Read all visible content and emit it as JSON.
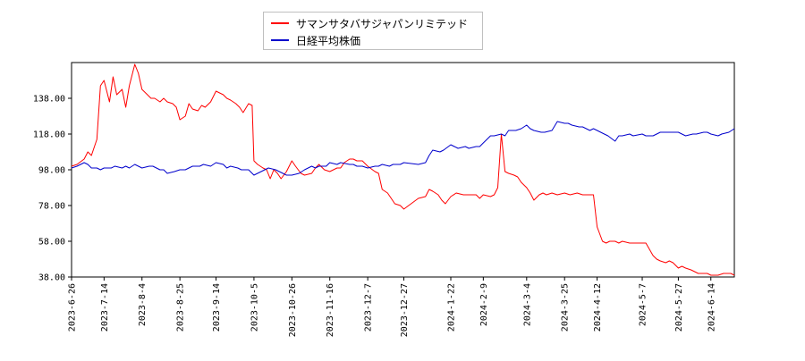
{
  "chart_data": {
    "type": "line",
    "title": "",
    "xlabel": "",
    "ylabel": "",
    "ylim": [
      38,
      158
    ],
    "yticks": [
      "38.00",
      "58.00",
      "78.00",
      "98.00",
      "118.00",
      "138.00"
    ],
    "xtick_labels": [
      "2023-6-26",
      "2023-7-14",
      "2023-8-4",
      "2023-8-25",
      "2023-9-14",
      "2023-10-5",
      "2023-10-26",
      "2023-11-16",
      "2023-12-7",
      "2023-12-27",
      "2024-1-22",
      "2024-2-9",
      "2024-3-4",
      "2024-3-25",
      "2024-4-12",
      "2024-5-7",
      "2024-5-27",
      "2024-6-14"
    ],
    "xtick_dates": [
      "2023-06-26",
      "2023-07-14",
      "2023-08-04",
      "2023-08-25",
      "2023-09-14",
      "2023-10-05",
      "2023-10-26",
      "2023-11-16",
      "2023-12-07",
      "2023-12-27",
      "2024-01-22",
      "2024-02-09",
      "2024-03-04",
      "2024-03-25",
      "2024-04-12",
      "2024-05-07",
      "2024-05-27",
      "2024-06-14"
    ],
    "x_range": [
      "2023-06-26",
      "2024-06-27"
    ],
    "grid": false,
    "legend_position": "top-center",
    "series": [
      {
        "name": "サマンサタバサジャパンリミテッド",
        "color": "#ff0000",
        "points": [
          [
            "2023-06-26",
            100
          ],
          [
            "2023-06-29",
            101
          ],
          [
            "2023-07-03",
            104
          ],
          [
            "2023-07-05",
            108
          ],
          [
            "2023-07-07",
            106
          ],
          [
            "2023-07-10",
            115
          ],
          [
            "2023-07-12",
            145
          ],
          [
            "2023-07-14",
            148
          ],
          [
            "2023-07-17",
            136
          ],
          [
            "2023-07-19",
            150
          ],
          [
            "2023-07-21",
            140
          ],
          [
            "2023-07-24",
            143
          ],
          [
            "2023-07-26",
            133
          ],
          [
            "2023-07-28",
            145
          ],
          [
            "2023-07-31",
            157
          ],
          [
            "2023-08-02",
            152
          ],
          [
            "2023-08-04",
            143
          ],
          [
            "2023-08-07",
            140
          ],
          [
            "2023-08-09",
            138
          ],
          [
            "2023-08-11",
            138
          ],
          [
            "2023-08-14",
            136
          ],
          [
            "2023-08-16",
            138
          ],
          [
            "2023-08-18",
            136
          ],
          [
            "2023-08-21",
            135
          ],
          [
            "2023-08-23",
            133
          ],
          [
            "2023-08-25",
            126
          ],
          [
            "2023-08-28",
            128
          ],
          [
            "2023-08-30",
            135
          ],
          [
            "2023-09-01",
            132
          ],
          [
            "2023-09-04",
            131
          ],
          [
            "2023-09-06",
            134
          ],
          [
            "2023-09-08",
            133
          ],
          [
            "2023-09-11",
            136
          ],
          [
            "2023-09-13",
            140
          ],
          [
            "2023-09-14",
            142
          ],
          [
            "2023-09-18",
            140
          ],
          [
            "2023-09-20",
            138
          ],
          [
            "2023-09-22",
            137
          ],
          [
            "2023-09-25",
            135
          ],
          [
            "2023-09-27",
            133
          ],
          [
            "2023-09-29",
            130
          ],
          [
            "2023-10-02",
            135
          ],
          [
            "2023-10-04",
            134
          ],
          [
            "2023-10-05",
            103
          ],
          [
            "2023-10-07",
            101
          ],
          [
            "2023-10-10",
            99
          ],
          [
            "2023-10-12",
            98
          ],
          [
            "2023-10-14",
            93
          ],
          [
            "2023-10-16",
            98
          ],
          [
            "2023-10-18",
            96
          ],
          [
            "2023-10-20",
            93
          ],
          [
            "2023-10-23",
            97
          ],
          [
            "2023-10-26",
            103
          ],
          [
            "2023-10-28",
            100
          ],
          [
            "2023-10-31",
            96
          ],
          [
            "2023-11-02",
            95
          ],
          [
            "2023-11-06",
            96
          ],
          [
            "2023-11-08",
            99
          ],
          [
            "2023-11-10",
            101
          ],
          [
            "2023-11-13",
            98
          ],
          [
            "2023-11-16",
            97
          ],
          [
            "2023-11-20",
            99
          ],
          [
            "2023-11-22",
            99
          ],
          [
            "2023-11-24",
            102
          ],
          [
            "2023-11-27",
            104
          ],
          [
            "2023-11-29",
            104
          ],
          [
            "2023-12-01",
            103
          ],
          [
            "2023-12-04",
            103
          ],
          [
            "2023-12-07",
            100
          ],
          [
            "2023-12-11",
            97
          ],
          [
            "2023-12-13",
            96
          ],
          [
            "2023-12-15",
            87
          ],
          [
            "2023-12-18",
            85
          ],
          [
            "2023-12-20",
            82
          ],
          [
            "2023-12-22",
            79
          ],
          [
            "2023-12-25",
            78
          ],
          [
            "2023-12-27",
            76
          ],
          [
            "2024-01-04",
            82
          ],
          [
            "2024-01-08",
            83
          ],
          [
            "2024-01-10",
            87
          ],
          [
            "2024-01-12",
            86
          ],
          [
            "2024-01-15",
            84
          ],
          [
            "2024-01-17",
            81
          ],
          [
            "2024-01-19",
            79
          ],
          [
            "2024-01-22",
            83
          ],
          [
            "2024-01-25",
            85
          ],
          [
            "2024-01-29",
            84
          ],
          [
            "2024-02-01",
            84
          ],
          [
            "2024-02-05",
            84
          ],
          [
            "2024-02-07",
            82
          ],
          [
            "2024-02-09",
            84
          ],
          [
            "2024-02-13",
            83
          ],
          [
            "2024-02-15",
            84
          ],
          [
            "2024-02-17",
            88
          ],
          [
            "2024-02-19",
            118
          ],
          [
            "2024-02-21",
            97
          ],
          [
            "2024-02-23",
            96
          ],
          [
            "2024-02-26",
            95
          ],
          [
            "2024-02-28",
            94
          ],
          [
            "2024-03-01",
            91
          ],
          [
            "2024-03-04",
            88
          ],
          [
            "2024-03-06",
            85
          ],
          [
            "2024-03-08",
            81
          ],
          [
            "2024-03-11",
            84
          ],
          [
            "2024-03-13",
            85
          ],
          [
            "2024-03-15",
            84
          ],
          [
            "2024-03-18",
            85
          ],
          [
            "2024-03-21",
            84
          ],
          [
            "2024-03-25",
            85
          ],
          [
            "2024-03-28",
            84
          ],
          [
            "2024-04-01",
            85
          ],
          [
            "2024-04-04",
            84
          ],
          [
            "2024-04-08",
            84
          ],
          [
            "2024-04-10",
            84
          ],
          [
            "2024-04-12",
            66
          ],
          [
            "2024-04-15",
            58
          ],
          [
            "2024-04-17",
            57
          ],
          [
            "2024-04-19",
            58
          ],
          [
            "2024-04-22",
            58
          ],
          [
            "2024-04-24",
            57
          ],
          [
            "2024-04-26",
            58
          ],
          [
            "2024-04-30",
            57
          ],
          [
            "2024-05-02",
            57
          ],
          [
            "2024-05-07",
            57
          ],
          [
            "2024-05-09",
            57
          ],
          [
            "2024-05-13",
            50
          ],
          [
            "2024-05-15",
            48
          ],
          [
            "2024-05-17",
            47
          ],
          [
            "2024-05-20",
            46
          ],
          [
            "2024-05-22",
            47
          ],
          [
            "2024-05-24",
            46
          ],
          [
            "2024-05-27",
            43
          ],
          [
            "2024-05-29",
            44
          ],
          [
            "2024-05-31",
            43
          ],
          [
            "2024-06-03",
            42
          ],
          [
            "2024-06-05",
            41
          ],
          [
            "2024-06-07",
            40
          ],
          [
            "2024-06-10",
            40
          ],
          [
            "2024-06-12",
            40
          ],
          [
            "2024-06-14",
            39
          ],
          [
            "2024-06-18",
            39
          ],
          [
            "2024-06-21",
            40
          ],
          [
            "2024-06-25",
            40
          ],
          [
            "2024-06-27",
            39
          ]
        ]
      },
      {
        "name": "日経平均株価",
        "color": "#0000cc",
        "points": [
          [
            "2023-06-26",
            99
          ],
          [
            "2023-06-29",
            100
          ],
          [
            "2023-07-03",
            102
          ],
          [
            "2023-07-05",
            101
          ],
          [
            "2023-07-07",
            99
          ],
          [
            "2023-07-10",
            99
          ],
          [
            "2023-07-12",
            98
          ],
          [
            "2023-07-14",
            99
          ],
          [
            "2023-07-18",
            99
          ],
          [
            "2023-07-20",
            100
          ],
          [
            "2023-07-24",
            99
          ],
          [
            "2023-07-26",
            100
          ],
          [
            "2023-07-28",
            99
          ],
          [
            "2023-07-31",
            101
          ],
          [
            "2023-08-02",
            100
          ],
          [
            "2023-08-04",
            99
          ],
          [
            "2023-08-08",
            100
          ],
          [
            "2023-08-10",
            100
          ],
          [
            "2023-08-14",
            98
          ],
          [
            "2023-08-16",
            98
          ],
          [
            "2023-08-18",
            96
          ],
          [
            "2023-08-22",
            97
          ],
          [
            "2023-08-25",
            98
          ],
          [
            "2023-08-28",
            98
          ],
          [
            "2023-08-30",
            99
          ],
          [
            "2023-09-01",
            100
          ],
          [
            "2023-09-05",
            100
          ],
          [
            "2023-09-07",
            101
          ],
          [
            "2023-09-11",
            100
          ],
          [
            "2023-09-14",
            102
          ],
          [
            "2023-09-18",
            101
          ],
          [
            "2023-09-20",
            99
          ],
          [
            "2023-09-22",
            100
          ],
          [
            "2023-09-26",
            99
          ],
          [
            "2023-09-28",
            98
          ],
          [
            "2023-10-02",
            98
          ],
          [
            "2023-10-05",
            95
          ],
          [
            "2023-10-09",
            97
          ],
          [
            "2023-10-11",
            98
          ],
          [
            "2023-10-13",
            99
          ],
          [
            "2023-10-17",
            98
          ],
          [
            "2023-10-19",
            97
          ],
          [
            "2023-10-23",
            95
          ],
          [
            "2023-10-26",
            95
          ],
          [
            "2023-10-30",
            96
          ],
          [
            "2023-11-02",
            98
          ],
          [
            "2023-11-06",
            100
          ],
          [
            "2023-11-08",
            99
          ],
          [
            "2023-11-10",
            100
          ],
          [
            "2023-11-14",
            100
          ],
          [
            "2023-11-16",
            102
          ],
          [
            "2023-11-20",
            101
          ],
          [
            "2023-11-22",
            102
          ],
          [
            "2023-11-27",
            101
          ],
          [
            "2023-11-29",
            101
          ],
          [
            "2023-12-01",
            100
          ],
          [
            "2023-12-04",
            100
          ],
          [
            "2023-12-07",
            99
          ],
          [
            "2023-12-11",
            100
          ],
          [
            "2023-12-13",
            100
          ],
          [
            "2023-12-15",
            101
          ],
          [
            "2023-12-19",
            100
          ],
          [
            "2023-12-21",
            101
          ],
          [
            "2023-12-25",
            101
          ],
          [
            "2023-12-27",
            102
          ],
          [
            "2024-01-04",
            101
          ],
          [
            "2024-01-08",
            102
          ],
          [
            "2024-01-10",
            106
          ],
          [
            "2024-01-12",
            109
          ],
          [
            "2024-01-16",
            108
          ],
          [
            "2024-01-18",
            109
          ],
          [
            "2024-01-22",
            112
          ],
          [
            "2024-01-24",
            111
          ],
          [
            "2024-01-26",
            110
          ],
          [
            "2024-01-30",
            111
          ],
          [
            "2024-02-01",
            110
          ],
          [
            "2024-02-05",
            111
          ],
          [
            "2024-02-07",
            111
          ],
          [
            "2024-02-09",
            113
          ],
          [
            "2024-02-13",
            117
          ],
          [
            "2024-02-15",
            117
          ],
          [
            "2024-02-19",
            118
          ],
          [
            "2024-02-21",
            117
          ],
          [
            "2024-02-23",
            120
          ],
          [
            "2024-02-27",
            120
          ],
          [
            "2024-03-01",
            121
          ],
          [
            "2024-03-04",
            123
          ],
          [
            "2024-03-06",
            121
          ],
          [
            "2024-03-08",
            120
          ],
          [
            "2024-03-12",
            119
          ],
          [
            "2024-03-14",
            119
          ],
          [
            "2024-03-18",
            120
          ],
          [
            "2024-03-21",
            125
          ],
          [
            "2024-03-25",
            124
          ],
          [
            "2024-03-27",
            124
          ],
          [
            "2024-03-29",
            123
          ],
          [
            "2024-04-02",
            122
          ],
          [
            "2024-04-04",
            122
          ],
          [
            "2024-04-08",
            120
          ],
          [
            "2024-04-10",
            121
          ],
          [
            "2024-04-12",
            120
          ],
          [
            "2024-04-16",
            118
          ],
          [
            "2024-04-18",
            117
          ],
          [
            "2024-04-22",
            114
          ],
          [
            "2024-04-24",
            117
          ],
          [
            "2024-04-26",
            117
          ],
          [
            "2024-04-30",
            118
          ],
          [
            "2024-05-02",
            117
          ],
          [
            "2024-05-07",
            118
          ],
          [
            "2024-05-09",
            117
          ],
          [
            "2024-05-13",
            117
          ],
          [
            "2024-05-15",
            118
          ],
          [
            "2024-05-17",
            119
          ],
          [
            "2024-05-21",
            119
          ],
          [
            "2024-05-23",
            119
          ],
          [
            "2024-05-27",
            119
          ],
          [
            "2024-05-29",
            118
          ],
          [
            "2024-05-31",
            117
          ],
          [
            "2024-06-04",
            118
          ],
          [
            "2024-06-06",
            118
          ],
          [
            "2024-06-10",
            119
          ],
          [
            "2024-06-12",
            119
          ],
          [
            "2024-06-14",
            118
          ],
          [
            "2024-06-18",
            117
          ],
          [
            "2024-06-20",
            118
          ],
          [
            "2024-06-24",
            119
          ],
          [
            "2024-06-27",
            121
          ]
        ]
      }
    ]
  }
}
